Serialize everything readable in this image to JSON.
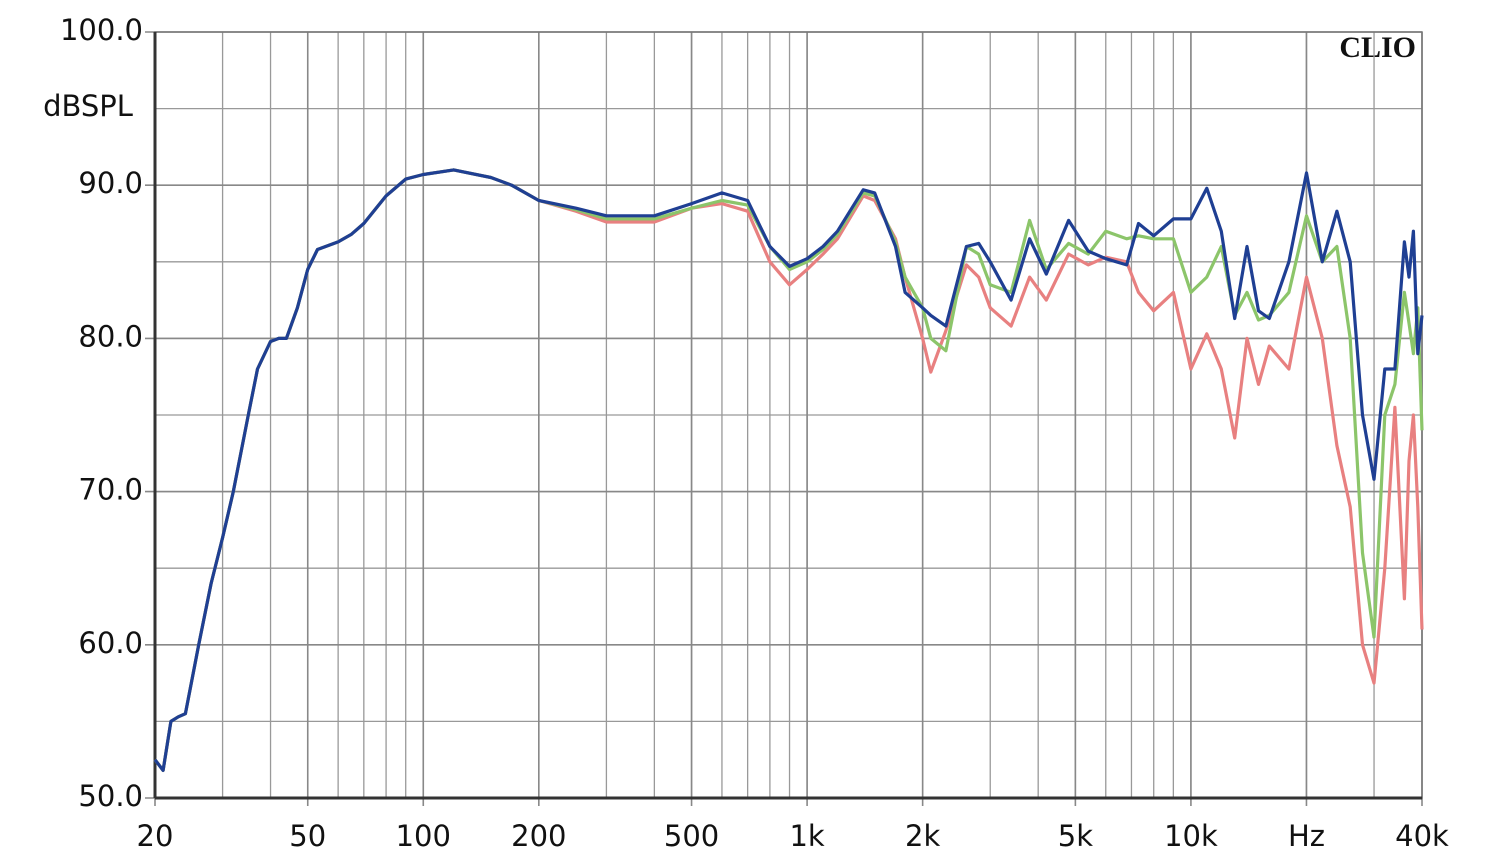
{
  "chart_data": {
    "type": "line",
    "y_label": "dBSPL",
    "watermark": "CLIO",
    "x_log": true,
    "grid": true,
    "y_minor_step": 5,
    "xlim": [
      20,
      40000
    ],
    "ylim": [
      50,
      100
    ],
    "xticks": [
      20,
      50,
      100,
      200,
      500,
      {
        "value": 1000,
        "label": "1k"
      },
      {
        "value": 2000,
        "label": "2k"
      },
      {
        "value": 5000,
        "label": "5k"
      },
      {
        "value": 10000,
        "label": "10k"
      },
      {
        "value": 20000,
        "label": "Hz"
      },
      {
        "value": 40000,
        "label": "40k"
      }
    ],
    "yticks": [
      {
        "value": 50,
        "label": "50.0"
      },
      {
        "value": 60,
        "label": "60.0"
      },
      {
        "value": 70,
        "label": "70.0"
      },
      {
        "value": 80,
        "label": "80.0"
      },
      {
        "value": 90,
        "label": "90.0"
      },
      {
        "value": 100,
        "label": "100.0"
      }
    ],
    "x": [
      20,
      21,
      22,
      23,
      24,
      26,
      28,
      30,
      32,
      35,
      37,
      40,
      42,
      44,
      47,
      50,
      53,
      60,
      65,
      70,
      80,
      90,
      100,
      120,
      150,
      170,
      200,
      250,
      300,
      400,
      500,
      600,
      700,
      800,
      900,
      1000,
      1100,
      1200,
      1400,
      1500,
      1700,
      1800,
      2000,
      2100,
      2300,
      2600,
      2800,
      3000,
      3400,
      3800,
      4200,
      4800,
      5400,
      6000,
      6800,
      7300,
      8000,
      9000,
      10000,
      11000,
      12000,
      13000,
      14000,
      15000,
      16000,
      18000,
      20000,
      22000,
      24000,
      26000,
      28000,
      30000,
      32000,
      34000,
      36000,
      37000,
      38000,
      39000,
      40000
    ],
    "series": [
      {
        "color": "#e88080",
        "values": [
          52.5,
          51.8,
          55,
          55.3,
          55.5,
          60,
          64,
          67,
          70,
          75,
          78,
          79.8,
          80,
          80,
          82,
          84.5,
          85.8,
          86.3,
          86.8,
          87.5,
          89.3,
          90.4,
          90.7,
          91,
          90.5,
          90,
          89,
          88.3,
          87.6,
          87.6,
          88.5,
          88.8,
          88.3,
          85,
          83.5,
          84.5,
          85.5,
          86.5,
          89.3,
          89,
          86.5,
          84,
          80,
          77.8,
          80.5,
          84.8,
          84,
          82,
          80.8,
          84,
          82.5,
          85.5,
          84.8,
          85.3,
          85,
          83,
          81.8,
          83,
          78,
          80.3,
          78,
          73.5,
          80,
          77,
          79.5,
          78,
          84,
          80,
          73,
          69,
          60,
          57.5,
          65,
          75.5,
          63,
          72,
          75,
          69,
          61
        ]
      },
      {
        "color": "#8cc56a",
        "values": [
          52.5,
          51.8,
          55,
          55.3,
          55.5,
          60,
          64,
          67,
          70,
          75,
          78,
          79.8,
          80,
          80,
          82,
          84.5,
          85.8,
          86.3,
          86.8,
          87.5,
          89.3,
          90.4,
          90.7,
          91,
          90.5,
          90,
          89,
          88.4,
          87.8,
          87.8,
          88.5,
          89,
          88.7,
          86,
          84.5,
          85,
          85.8,
          86.8,
          89.5,
          89.3,
          86.3,
          84,
          82,
          80,
          79.2,
          86,
          85.5,
          83.5,
          83,
          87.7,
          84.5,
          86.2,
          85.5,
          87,
          86.5,
          86.7,
          86.5,
          86.5,
          83,
          84,
          86,
          81.5,
          83,
          81.2,
          81.5,
          83,
          88,
          85,
          86,
          80,
          66,
          60.5,
          75,
          77,
          83,
          81,
          79,
          82,
          74
        ]
      },
      {
        "color": "#1f3f93",
        "values": [
          52.5,
          51.8,
          55,
          55.3,
          55.5,
          60,
          64,
          67,
          70,
          75,
          78,
          79.8,
          80,
          80,
          82,
          84.5,
          85.8,
          86.3,
          86.8,
          87.5,
          89.3,
          90.4,
          90.7,
          91,
          90.5,
          90,
          89,
          88.5,
          88,
          88,
          88.8,
          89.5,
          89,
          86,
          84.7,
          85.2,
          86,
          87,
          89.7,
          89.5,
          86,
          83,
          82,
          81.5,
          80.8,
          86,
          86.2,
          85,
          82.5,
          86.5,
          84.2,
          87.7,
          85.7,
          85.2,
          84.8,
          87.5,
          86.7,
          87.8,
          87.8,
          89.8,
          87,
          81.3,
          86,
          81.8,
          81.3,
          85,
          90.8,
          85,
          88.3,
          85,
          75,
          70.8,
          78,
          78,
          86.3,
          84,
          87,
          79,
          81.5
        ]
      }
    ]
  }
}
